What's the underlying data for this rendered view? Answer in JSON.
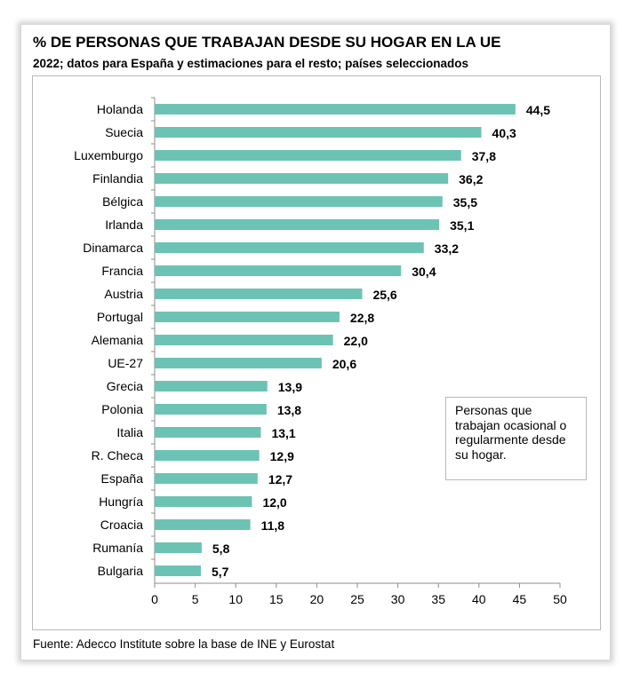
{
  "title": "% DE PERSONAS QUE TRABAJAN DESDE SU HOGAR EN LA UE",
  "subtitle": "2022; datos para España y estimaciones para el resto; países seleccionados",
  "source": "Fuente: Adecco Institute sobre la base de INE y Eurostat",
  "colors": {
    "bar": "#6cc3b4",
    "axis": "#8c8c8c",
    "frame": "#b9b9b9"
  },
  "chart_data": {
    "type": "bar",
    "orientation": "horizontal",
    "title": "% DE PERSONAS QUE TRABAJAN DESDE SU HOGAR EN LA UE",
    "subtitle": "2022; datos para España y estimaciones para el resto; países seleccionados",
    "categories": [
      "Holanda",
      "Suecia",
      "Luxemburgo",
      "Finlandia",
      "Bélgica",
      "Irlanda",
      "Dinamarca",
      "Francia",
      "Austria",
      "Portugal",
      "Alemania",
      "UE-27",
      "Grecia",
      "Polonia",
      "Italia",
      "R. Checa",
      "España",
      "Hungría",
      "Croacia",
      "Rumanía",
      "Bulgaria"
    ],
    "values": [
      44.5,
      40.3,
      37.8,
      36.2,
      35.5,
      35.1,
      33.2,
      30.4,
      25.6,
      22.8,
      22.0,
      20.6,
      13.9,
      13.8,
      13.1,
      12.9,
      12.7,
      12.0,
      11.8,
      5.8,
      5.7
    ],
    "value_labels": [
      "44,5",
      "40,3",
      "37,8",
      "36,2",
      "35,5",
      "35,1",
      "33,2",
      "30,4",
      "25,6",
      "22,8",
      "22,0",
      "20,6",
      "13,9",
      "13,8",
      "13,1",
      "12,9",
      "12,7",
      "12,0",
      "11,8",
      "5,8",
      "5,7"
    ],
    "xlim": [
      0,
      50
    ],
    "xticks": [
      0,
      5,
      10,
      15,
      20,
      25,
      30,
      35,
      40,
      45,
      50
    ],
    "grid": false,
    "annotation": "Personas que trabajan ocasional o regularmente desde su hogar."
  }
}
